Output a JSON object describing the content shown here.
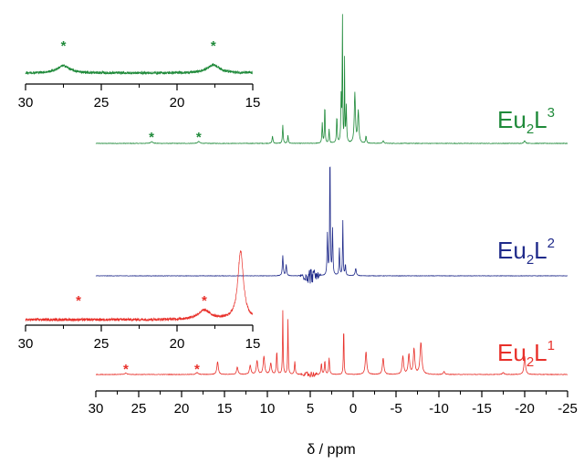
{
  "chart_data": {
    "type": "line",
    "title": "",
    "xlabel": "δ / ppm",
    "ylabel": "",
    "x_direction": "reversed",
    "xlim": [
      30,
      -25
    ],
    "xticks": [
      "30",
      "25",
      "20",
      "15",
      "10",
      "5",
      "0",
      "-5",
      "-10",
      "-15",
      "-20",
      "-25"
    ],
    "grid": false,
    "legend": "none",
    "series": [
      {
        "name_parts": [
          "Eu",
          "2",
          "L",
          "3"
        ],
        "color": "#1f8a3a",
        "baseline_noise": 0.6,
        "peaks": [
          {
            "x": 23.5,
            "h": 2,
            "w": 0.15
          },
          {
            "x": 18.0,
            "h": 2,
            "w": 0.15
          },
          {
            "x": 9.4,
            "h": 8,
            "w": 0.06
          },
          {
            "x": 8.2,
            "h": 20,
            "w": 0.05
          },
          {
            "x": 7.6,
            "h": 9,
            "w": 0.05
          },
          {
            "x": 3.6,
            "h": 22,
            "w": 0.05
          },
          {
            "x": 3.3,
            "h": 45,
            "w": 0.04
          },
          {
            "x": 2.8,
            "h": 15,
            "w": 0.05
          },
          {
            "x": 1.9,
            "h": 30,
            "w": 0.05
          },
          {
            "x": 1.4,
            "h": 50,
            "w": 0.05
          },
          {
            "x": 1.25,
            "h": 150,
            "w": 0.03
          },
          {
            "x": 1.0,
            "h": 90,
            "w": 0.03
          },
          {
            "x": 0.8,
            "h": 40,
            "w": 0.05
          },
          {
            "x": -0.2,
            "h": 55,
            "w": 0.08
          },
          {
            "x": -0.6,
            "h": 35,
            "w": 0.08
          },
          {
            "x": -1.5,
            "h": 8,
            "w": 0.06
          },
          {
            "x": -3.5,
            "h": 3,
            "w": 0.08
          },
          {
            "x": -20.0,
            "h": 3,
            "w": 0.1
          }
        ]
      },
      {
        "name_parts": [
          "Eu",
          "2",
          "L",
          "2"
        ],
        "color": "#1f2a8a",
        "baseline_noise": 0.5,
        "peaks": [
          {
            "x": 8.2,
            "h": 22,
            "w": 0.06
          },
          {
            "x": 7.8,
            "h": 12,
            "w": 0.06
          },
          {
            "x": 3.0,
            "h": 45,
            "w": 0.05
          },
          {
            "x": 2.7,
            "h": 145,
            "w": 0.04
          },
          {
            "x": 2.4,
            "h": 50,
            "w": 0.05
          },
          {
            "x": 1.6,
            "h": 30,
            "w": 0.05
          },
          {
            "x": 1.2,
            "h": 60,
            "w": 0.04
          },
          {
            "x": 0.9,
            "h": 12,
            "w": 0.05
          },
          {
            "x": -0.3,
            "h": 8,
            "w": 0.08
          }
        ],
        "artifact": {
          "x": 5.0,
          "span": 1.4,
          "h": 10
        }
      },
      {
        "name_parts": [
          "Eu",
          "2",
          "L",
          "1"
        ],
        "color": "#e8302a",
        "baseline_noise": 0.6,
        "peaks": [
          {
            "x": 26.5,
            "h": 1.5,
            "w": 0.15
          },
          {
            "x": 18.2,
            "h": 2,
            "w": 0.15
          },
          {
            "x": 15.8,
            "h": 14,
            "w": 0.1
          },
          {
            "x": 13.5,
            "h": 8,
            "w": 0.1
          },
          {
            "x": 12.0,
            "h": 10,
            "w": 0.1
          },
          {
            "x": 11.2,
            "h": 15,
            "w": 0.1
          },
          {
            "x": 10.4,
            "h": 20,
            "w": 0.1
          },
          {
            "x": 9.6,
            "h": 12,
            "w": 0.1
          },
          {
            "x": 8.9,
            "h": 25,
            "w": 0.06
          },
          {
            "x": 8.2,
            "h": 70,
            "w": 0.04
          },
          {
            "x": 7.6,
            "h": 60,
            "w": 0.04
          },
          {
            "x": 6.8,
            "h": 14,
            "w": 0.06
          },
          {
            "x": 3.7,
            "h": 12,
            "w": 0.06
          },
          {
            "x": 3.3,
            "h": 15,
            "w": 0.06
          },
          {
            "x": 2.8,
            "h": 18,
            "w": 0.06
          },
          {
            "x": 1.1,
            "h": 55,
            "w": 0.04
          },
          {
            "x": -1.5,
            "h": 25,
            "w": 0.1
          },
          {
            "x": -3.5,
            "h": 18,
            "w": 0.1
          },
          {
            "x": -5.8,
            "h": 20,
            "w": 0.1
          },
          {
            "x": -6.5,
            "h": 22,
            "w": 0.1
          },
          {
            "x": -7.1,
            "h": 28,
            "w": 0.1
          },
          {
            "x": -7.9,
            "h": 35,
            "w": 0.12
          },
          {
            "x": -10.6,
            "h": 3,
            "w": 0.1
          },
          {
            "x": -17.5,
            "h": 2,
            "w": 0.12
          },
          {
            "x": -20.0,
            "h": 20,
            "w": 0.1
          }
        ],
        "artifact": {
          "x": 5.0,
          "span": 1.2,
          "h": 4
        }
      }
    ],
    "insets": [
      {
        "series": "Eu2L3",
        "color": "#1f8a3a",
        "xlim": [
          30,
          15
        ],
        "xticks": [
          "30",
          "25",
          "20",
          "15"
        ],
        "peaks": [
          {
            "x": 27.5,
            "h": 8,
            "w": 0.5
          },
          {
            "x": 17.6,
            "h": 9,
            "w": 0.5
          }
        ],
        "stars_x": [
          27.5,
          17.6
        ],
        "noise": 3
      },
      {
        "series": "Eu2L1",
        "color": "#e8302a",
        "xlim": [
          30,
          15
        ],
        "xticks": [
          "30",
          "25",
          "20",
          "15"
        ],
        "peaks": [
          {
            "x": 18.2,
            "h": 10,
            "w": 0.5
          },
          {
            "x": 15.8,
            "h": 75,
            "w": 0.22
          }
        ],
        "stars_x": [
          26.5,
          18.2
        ],
        "noise": 3
      }
    ],
    "annotations": [
      {
        "text": "*",
        "series": "Eu2L3",
        "x": 23.5
      },
      {
        "text": "*",
        "series": "Eu2L3",
        "x": 18.0
      },
      {
        "text": "*",
        "series": "Eu2L1",
        "x": 26.5
      },
      {
        "text": "*",
        "series": "Eu2L1",
        "x": 18.2
      }
    ]
  }
}
